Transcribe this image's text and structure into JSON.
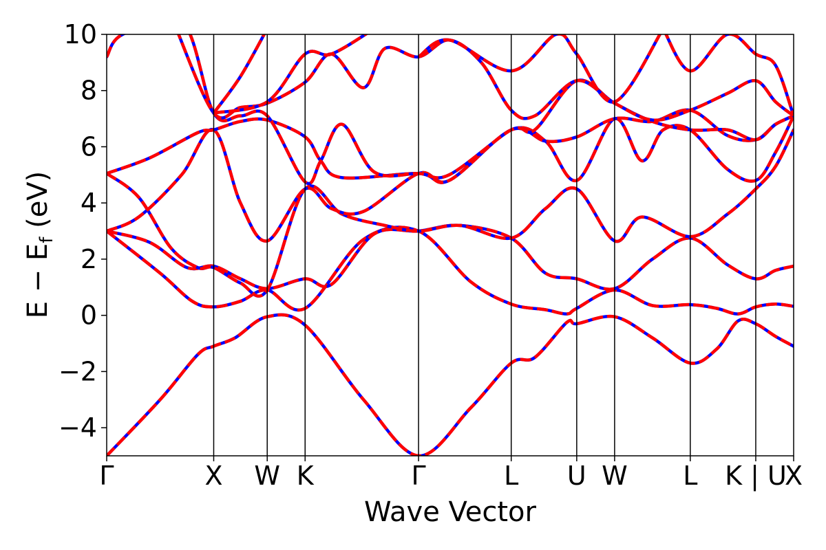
{
  "chart_data": {
    "type": "line",
    "xlabel": "Wave Vector",
    "ylabel_main": "E − E",
    "ylabel_sub": "f",
    "ylabel_unit": "(eV)",
    "ylim": [
      -5,
      10
    ],
    "yticks": [
      -4,
      -2,
      0,
      2,
      4,
      6,
      8,
      10
    ],
    "ytick_labels": [
      "−4",
      "−2",
      "0",
      "2",
      "4",
      "6",
      "8",
      "10"
    ],
    "kpath_ticks": [
      {
        "label": "Γ",
        "x": 0.0
      },
      {
        "label": "X",
        "x": 1.0
      },
      {
        "label": "W",
        "x": 1.5
      },
      {
        "label": "K",
        "x": 1.854
      },
      {
        "label": "Γ",
        "x": 2.914
      },
      {
        "label": "L",
        "x": 3.78
      },
      {
        "label": "U",
        "x": 4.392
      },
      {
        "label": "W",
        "x": 4.746
      },
      {
        "label": "L",
        "x": 5.453
      },
      {
        "label": "K | U",
        "x": 6.065
      },
      {
        "label": "X",
        "x": 6.419
      }
    ],
    "xlim": [
      0,
      6.419
    ],
    "grid": false,
    "series_styles": [
      {
        "color": "#0000ff",
        "style": "solid"
      },
      {
        "color": "#ff0000",
        "style": "dashed"
      }
    ],
    "bands": [
      [
        [
          0,
          -5.0
        ],
        [
          0.5,
          -3.0
        ],
        [
          0.85,
          -1.4
        ],
        [
          1.0,
          -1.1
        ],
        [
          1.2,
          -0.8
        ],
        [
          1.5,
          -0.05
        ],
        [
          1.854,
          -0.35
        ],
        [
          2.4,
          -3.0
        ],
        [
          2.914,
          -5.0
        ],
        [
          3.4,
          -3.3
        ],
        [
          3.78,
          -1.7
        ],
        [
          4.0,
          -1.5
        ],
        [
          4.3,
          -0.25
        ],
        [
          4.392,
          -0.3
        ],
        [
          4.746,
          -0.05
        ],
        [
          5.1,
          -0.8
        ],
        [
          5.453,
          -1.7
        ],
        [
          5.7,
          -1.2
        ],
        [
          5.9,
          -0.2
        ],
        [
          6.065,
          -0.3
        ],
        [
          6.25,
          -0.75
        ],
        [
          6.419,
          -1.1
        ]
      ],
      [
        [
          0,
          3.0
        ],
        [
          0.5,
          1.5
        ],
        [
          0.8,
          0.5
        ],
        [
          1.0,
          0.3
        ],
        [
          1.25,
          0.5
        ],
        [
          1.5,
          0.9
        ],
        [
          1.854,
          0.25
        ],
        [
          2.4,
          2.7
        ],
        [
          2.914,
          3.0
        ],
        [
          3.4,
          1.2
        ],
        [
          3.78,
          0.4
        ],
        [
          4.1,
          0.2
        ],
        [
          4.3,
          0.05
        ],
        [
          4.392,
          0.25
        ],
        [
          4.746,
          0.9
        ],
        [
          5.1,
          0.35
        ],
        [
          5.453,
          0.38
        ],
        [
          5.7,
          0.25
        ],
        [
          5.9,
          0.05
        ],
        [
          6.065,
          0.3
        ],
        [
          6.25,
          0.4
        ],
        [
          6.419,
          0.32
        ]
      ],
      [
        [
          0,
          3.0
        ],
        [
          0.4,
          2.6
        ],
        [
          0.75,
          1.7
        ],
        [
          1.0,
          1.75
        ],
        [
          1.25,
          1.3
        ],
        [
          1.5,
          0.95
        ],
        [
          1.854,
          1.3
        ],
        [
          2.1,
          1.1
        ],
        [
          2.5,
          2.9
        ],
        [
          2.914,
          3.0
        ],
        [
          3.3,
          3.2
        ],
        [
          3.78,
          2.75
        ],
        [
          4.1,
          1.5
        ],
        [
          4.392,
          1.3
        ],
        [
          4.746,
          0.95
        ],
        [
          5.1,
          2.0
        ],
        [
          5.453,
          2.75
        ],
        [
          5.8,
          1.8
        ],
        [
          6.065,
          1.3
        ],
        [
          6.25,
          1.6
        ],
        [
          6.419,
          1.75
        ]
      ],
      [
        [
          0,
          5.05
        ],
        [
          0.3,
          4.2
        ],
        [
          0.6,
          2.4
        ],
        [
          0.85,
          1.7
        ],
        [
          1.0,
          1.7
        ],
        [
          1.25,
          1.15
        ],
        [
          1.5,
          0.9
        ],
        [
          1.854,
          4.5
        ],
        [
          2.2,
          3.6
        ],
        [
          2.6,
          3.2
        ],
        [
          2.914,
          3.0
        ],
        [
          3.3,
          3.2
        ],
        [
          3.78,
          2.75
        ],
        [
          4.1,
          3.8
        ],
        [
          4.392,
          4.5
        ],
        [
          4.746,
          2.65
        ],
        [
          5.0,
          3.5
        ],
        [
          5.453,
          2.8
        ],
        [
          5.8,
          3.6
        ],
        [
          6.065,
          4.5
        ],
        [
          6.25,
          5.3
        ],
        [
          6.419,
          6.6
        ]
      ],
      [
        [
          0,
          3.0
        ],
        [
          0.3,
          3.5
        ],
        [
          0.7,
          5.0
        ],
        [
          1.0,
          6.6
        ],
        [
          1.25,
          4.0
        ],
        [
          1.5,
          2.65
        ],
        [
          1.854,
          4.5
        ],
        [
          2.1,
          3.8
        ],
        [
          2.4,
          3.7
        ],
        [
          2.914,
          5.05
        ],
        [
          3.2,
          4.8
        ],
        [
          3.78,
          6.6
        ],
        [
          4.1,
          6.2
        ],
        [
          4.392,
          4.8
        ],
        [
          4.746,
          7.0
        ],
        [
          5.0,
          5.5
        ],
        [
          5.2,
          6.6
        ],
        [
          5.453,
          6.6
        ],
        [
          5.8,
          5.2
        ],
        [
          6.065,
          4.8
        ],
        [
          6.25,
          5.8
        ],
        [
          6.419,
          7.1
        ]
      ],
      [
        [
          0,
          5.05
        ],
        [
          0.4,
          5.6
        ],
        [
          0.85,
          6.5
        ],
        [
          1.0,
          6.6
        ],
        [
          1.25,
          6.9
        ],
        [
          1.5,
          6.95
        ],
        [
          1.854,
          6.35
        ],
        [
          2.0,
          5.5
        ],
        [
          2.2,
          4.9
        ],
        [
          2.914,
          5.05
        ],
        [
          3.2,
          4.8
        ],
        [
          3.78,
          6.6
        ],
        [
          4.1,
          6.2
        ],
        [
          4.392,
          6.35
        ],
        [
          4.746,
          7.0
        ],
        [
          5.1,
          6.9
        ],
        [
          5.453,
          7.3
        ],
        [
          5.8,
          6.4
        ],
        [
          6.065,
          6.25
        ],
        [
          6.25,
          6.8
        ],
        [
          6.419,
          7.1
        ]
      ],
      [
        [
          0,
          9.2
        ],
        [
          0.15,
          10.0
        ],
        [
          0.7,
          10.5
        ],
        [
          1.0,
          7.2
        ],
        [
          1.25,
          7.1
        ],
        [
          1.5,
          7.1
        ],
        [
          1.854,
          4.75
        ],
        [
          2.0,
          5.5
        ],
        [
          2.2,
          6.8
        ],
        [
          2.5,
          5.1
        ],
        [
          2.914,
          5.05
        ],
        [
          3.2,
          5.0
        ],
        [
          3.78,
          6.6
        ],
        [
          4.0,
          6.6
        ],
        [
          4.392,
          8.35
        ],
        [
          4.746,
          7.55
        ],
        [
          5.1,
          6.9
        ],
        [
          5.453,
          6.6
        ],
        [
          5.8,
          6.6
        ],
        [
          6.065,
          6.25
        ],
        [
          6.25,
          6.8
        ],
        [
          6.419,
          7.1
        ]
      ],
      [
        [
          0.65,
          10.2
        ],
        [
          1.0,
          7.2
        ],
        [
          1.25,
          7.4
        ],
        [
          1.5,
          7.55
        ],
        [
          1.854,
          8.3
        ],
        [
          2.1,
          9.3
        ],
        [
          2.4,
          8.1
        ],
        [
          2.6,
          9.5
        ],
        [
          2.914,
          9.2
        ],
        [
          3.2,
          9.8
        ],
        [
          3.5,
          9.0
        ],
        [
          3.78,
          7.3
        ],
        [
          4.0,
          7.1
        ],
        [
          4.392,
          8.35
        ],
        [
          4.746,
          7.55
        ],
        [
          5.1,
          6.95
        ],
        [
          5.453,
          7.3
        ],
        [
          5.8,
          7.9
        ],
        [
          6.065,
          8.35
        ],
        [
          6.25,
          7.6
        ],
        [
          6.419,
          7.1
        ]
      ],
      [
        [
          1.0,
          7.2
        ],
        [
          1.25,
          8.5
        ],
        [
          1.5,
          10.2
        ]
      ],
      [
        [
          1.0,
          7.2
        ],
        [
          1.5,
          7.6
        ],
        [
          1.854,
          9.3
        ],
        [
          2.1,
          9.3
        ],
        [
          2.5,
          10.2
        ]
      ],
      [
        [
          2.914,
          9.2
        ],
        [
          3.2,
          9.8
        ],
        [
          3.78,
          8.7
        ],
        [
          4.2,
          10.0
        ],
        [
          4.392,
          9.3
        ],
        [
          4.746,
          7.6
        ],
        [
          5.2,
          10.2
        ]
      ],
      [
        [
          5.2,
          10.2
        ],
        [
          5.453,
          8.7
        ],
        [
          5.8,
          10.0
        ],
        [
          6.065,
          9.3
        ],
        [
          6.25,
          8.9
        ],
        [
          6.419,
          7.1
        ]
      ]
    ]
  }
}
